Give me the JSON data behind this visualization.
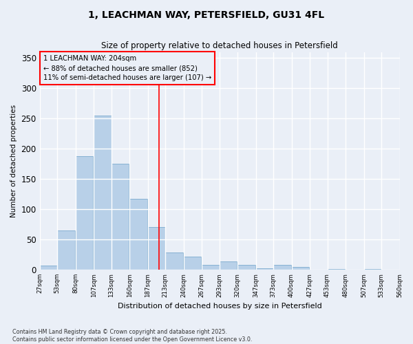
{
  "title_line1": "1, LEACHMAN WAY, PETERSFIELD, GU31 4FL",
  "title_line2": "Size of property relative to detached houses in Petersfield",
  "xlabel": "Distribution of detached houses by size in Petersfield",
  "ylabel": "Number of detached properties",
  "bin_edges": [
    27,
    53,
    80,
    107,
    133,
    160,
    187,
    213,
    240,
    267,
    293,
    320,
    347,
    373,
    400,
    427,
    453,
    480,
    507,
    533,
    560
  ],
  "bar_heights": [
    7,
    65,
    188,
    255,
    175,
    117,
    70,
    28,
    22,
    8,
    14,
    8,
    2,
    8,
    4,
    0,
    1,
    0,
    1,
    0
  ],
  "bar_color": "#b8d0e8",
  "bar_edge_color": "#7aaace",
  "subject_size": 204,
  "annotation_line1": "1 LEACHMAN WAY: 204sqm",
  "annotation_line2": "← 88% of detached houses are smaller (852)",
  "annotation_line3": "11% of semi-detached houses are larger (107) →",
  "ylim": [
    0,
    360
  ],
  "yticks": [
    0,
    50,
    100,
    150,
    200,
    250,
    300,
    350
  ],
  "background_color": "#eaeff7",
  "grid_color": "#ffffff",
  "footnote_line1": "Contains HM Land Registry data © Crown copyright and database right 2025.",
  "footnote_line2": "Contains public sector information licensed under the Open Government Licence v3.0."
}
